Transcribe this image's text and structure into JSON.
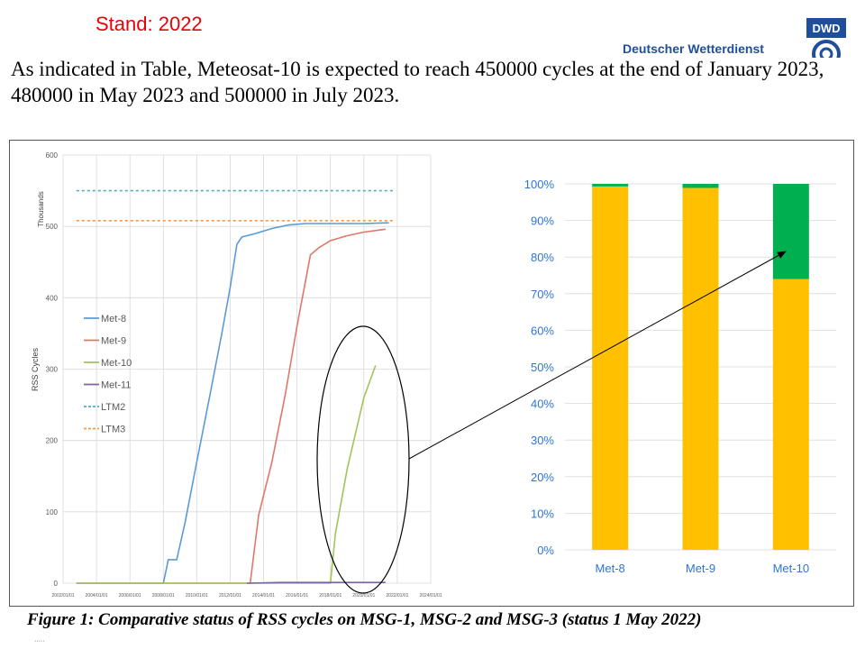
{
  "header": {
    "stand_label": "Stand: 2022",
    "logo_text": "Deutscher Wetterdienst",
    "logo_badge": "DWD"
  },
  "intro_text": "As indicated in Table, Meteosat-10 is expected to reach 450000 cycles at the end of January 2023, 480000 in May 2023 and 500000 in July 2023.",
  "caption": "Figure 1: Comparative status of RSS cycles on MSG-1, MSG-2 and MSG-3 (status 1 May 2022)",
  "footnote": "·····",
  "chart_data": [
    {
      "type": "line",
      "title": "",
      "xlabel": "",
      "ylabel": "RSS Cycles",
      "yunit_label": "Thousands",
      "ylim": [
        0,
        600
      ],
      "yticks": [
        0,
        100,
        200,
        300,
        400,
        500,
        600
      ],
      "xlim": [
        2002,
        2024
      ],
      "xticks": [
        "2002/01/01",
        "2004/01/01",
        "2006/01/01",
        "2008/01/01",
        "2010/01/01",
        "2012/01/01",
        "2014/01/01",
        "2016/01/01",
        "2018/01/01",
        "2020/01/01",
        "2022/01/01",
        "2024/01/01"
      ],
      "grid": true,
      "legend": "left",
      "series": [
        {
          "name": "Met-8",
          "color": "#5b9bd5",
          "style": "solid",
          "points": [
            [
              2002.8,
              0
            ],
            [
              2008.0,
              0
            ],
            [
              2008.3,
              33
            ],
            [
              2008.8,
              33
            ],
            [
              2009.3,
              85
            ],
            [
              2010.0,
              170
            ],
            [
              2010.8,
              265
            ],
            [
              2011.5,
              350
            ],
            [
              2012.0,
              415
            ],
            [
              2012.4,
              475
            ],
            [
              2012.7,
              485
            ],
            [
              2013.5,
              490
            ],
            [
              2014.5,
              497
            ],
            [
              2015.5,
              502
            ],
            [
              2016.5,
              504
            ],
            [
              2018.0,
              504
            ],
            [
              2020.0,
              504
            ],
            [
              2021.5,
              505
            ]
          ]
        },
        {
          "name": "Met-9",
          "color": "#e07868",
          "style": "solid",
          "points": [
            [
              2002.8,
              0
            ],
            [
              2012.8,
              0
            ],
            [
              2013.2,
              0
            ],
            [
              2013.7,
              95
            ],
            [
              2014.5,
              170
            ],
            [
              2015.3,
              265
            ],
            [
              2016.0,
              360
            ],
            [
              2016.8,
              460
            ],
            [
              2017.3,
              470
            ],
            [
              2018.0,
              480
            ],
            [
              2019.0,
              487
            ],
            [
              2020.0,
              492
            ],
            [
              2021.3,
              496
            ]
          ]
        },
        {
          "name": "Met-10",
          "color": "#9dc65a",
          "style": "solid",
          "points": [
            [
              2002.8,
              0
            ],
            [
              2017.0,
              0
            ],
            [
              2018.0,
              0
            ],
            [
              2018.3,
              70
            ],
            [
              2019.0,
              160
            ],
            [
              2020.0,
              260
            ],
            [
              2020.7,
              305
            ]
          ]
        },
        {
          "name": "Met-11",
          "color": "#8064a2",
          "style": "solid",
          "points": [
            [
              2013.0,
              0
            ],
            [
              2015.0,
              1
            ],
            [
              2018.0,
              1
            ],
            [
              2020.0,
              1
            ],
            [
              2021.3,
              1
            ]
          ]
        },
        {
          "name": "LTM2",
          "color": "#4bacc6",
          "style": "dashed",
          "points": [
            [
              2002.8,
              550
            ],
            [
              2021.8,
              550
            ]
          ]
        },
        {
          "name": "LTM3",
          "color": "#f79646",
          "style": "dashed",
          "points": [
            [
              2002.8,
              508
            ],
            [
              2021.8,
              508
            ]
          ]
        }
      ]
    },
    {
      "type": "bar",
      "stacked": true,
      "title": "",
      "categories": [
        "Met-8",
        "Met-9",
        "Met-10"
      ],
      "ylim": [
        0,
        100
      ],
      "yticks": [
        "0%",
        "10%",
        "20%",
        "30%",
        "40%",
        "50%",
        "60%",
        "70%",
        "80%",
        "90%",
        "100%"
      ],
      "grid": true,
      "series": [
        {
          "color": "#ffc000",
          "values": [
            99.3,
            98.9,
            74.0
          ]
        },
        {
          "color": "#00b050",
          "values": [
            0.7,
            1.1,
            26.0
          ]
        }
      ]
    }
  ],
  "annotations": {
    "ellipse_color": "#000000",
    "arrow_color": "#000000"
  }
}
